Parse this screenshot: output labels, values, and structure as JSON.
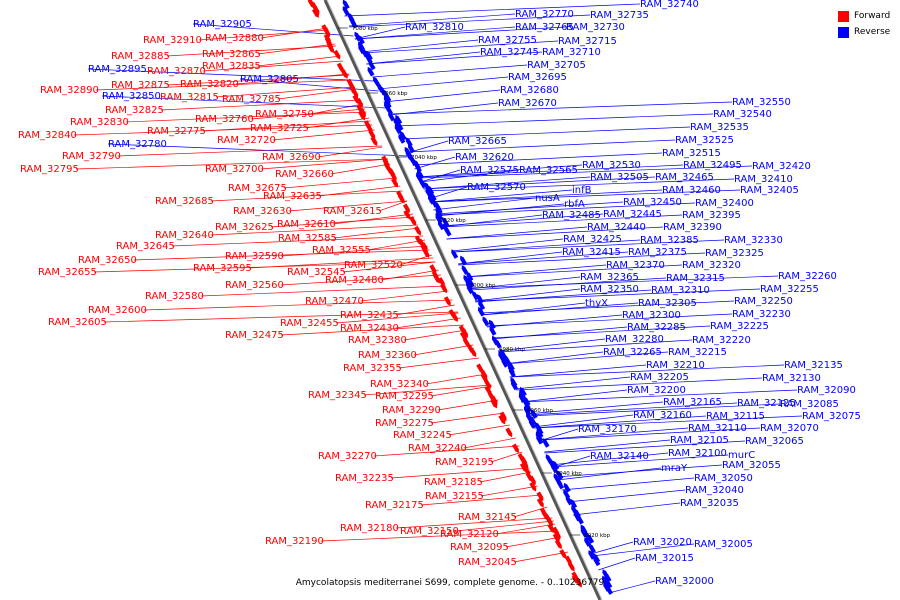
{
  "legend": [
    {
      "label": "Forward",
      "color": "#ff0000"
    },
    {
      "label": "Reverse",
      "color": "#0000ff"
    }
  ],
  "caption": "Amycolatopsis mediterranei S699, complete genome. - 0..10236779",
  "ticks": [
    "7080 kbp",
    "7060 kbp",
    "7040 kbp",
    "7020 kbp",
    "7000 kbp",
    "6980 kbp",
    "6960 kbp",
    "6940 kbp",
    "6920 kbp"
  ],
  "colors": {
    "forward": "#ff0000",
    "reverse": "#0000ff",
    "axis": "#555555"
  },
  "forward_genes": [
    "RAM_32880",
    "RAM_32910",
    "RAM_32865",
    "RAM_32885",
    "RAM_32835",
    "RAM_32870",
    "RAM_32820",
    "RAM_32875",
    "RAM_32890",
    "RAM_32815",
    "RAM_32785",
    "RAM_32825",
    "RAM_32760",
    "RAM_32750",
    "RAM_32830",
    "RAM_32775",
    "RAM_32725",
    "RAM_32840",
    "RAM_32720",
    "RAM_32790",
    "RAM_32690",
    "RAM_32795",
    "RAM_32700",
    "RAM_32660",
    "RAM_32675",
    "RAM_32635",
    "RAM_32685",
    "RAM_32630",
    "RAM_32615",
    "RAM_32625",
    "RAM_32610",
    "RAM_32640",
    "RAM_32585",
    "RAM_32645",
    "RAM_32555",
    "RAM_32650",
    "RAM_32590",
    "RAM_32595",
    "RAM_32545",
    "RAM_32655",
    "RAM_32520",
    "RAM_32560",
    "RAM_32480",
    "RAM_32580",
    "RAM_32470",
    "RAM_32600",
    "RAM_32435",
    "RAM_32605",
    "RAM_32455",
    "RAM_32430",
    "RAM_32475",
    "RAM_32380",
    "RAM_32360",
    "RAM_32355",
    "RAM_32340",
    "RAM_32345",
    "RAM_32295",
    "RAM_32290",
    "RAM_32275",
    "RAM_32245",
    "RAM_32240",
    "RAM_32270",
    "RAM_32195",
    "RAM_32235",
    "RAM_32185",
    "RAM_32155",
    "RAM_32175",
    "RAM_32145",
    "RAM_32180",
    "RAM_32150",
    "RAM_32120",
    "RAM_32190",
    "RAM_32095",
    "RAM_32045"
  ],
  "reverse_genes": [
    "RAM_32740",
    "RAM_32770",
    "RAM_32735",
    "RAM_32905",
    "RAM_32810",
    "RAM_32765",
    "RAM_32730",
    "RAM_32755",
    "RAM_32715",
    "RAM_32745",
    "RAM_32710",
    "RAM_32895",
    "RAM_32705",
    "RAM_32695",
    "RAM_32805",
    "RAM_32850",
    "RAM_32680",
    "RAM_32670",
    "RAM_32780",
    "RAM_32665",
    "RAM_32550",
    "RAM_32540",
    "RAM_32535",
    "RAM_32525",
    "RAM_32620",
    "RAM_32515",
    "RAM_32495",
    "RAM_32530",
    "RAM_32420",
    "RAM_32575",
    "RAM_32565",
    "RAM_32505",
    "RAM_32465",
    "RAM_32410",
    "RAM_32570",
    "infB",
    "RAM_32460",
    "RAM_32405",
    "nusA",
    "rbfA",
    "RAM_32450",
    "RAM_32400",
    "RAM_32485",
    "RAM_32445",
    "RAM_32395",
    "RAM_32440",
    "RAM_32390",
    "RAM_32425",
    "RAM_32385",
    "RAM_32330",
    "RAM_32415",
    "RAM_32375",
    "RAM_32325",
    "RAM_32370",
    "RAM_32320",
    "RAM_32365",
    "RAM_32315",
    "RAM_32260",
    "RAM_32350",
    "RAM_32310",
    "RAM_32255",
    "thyX",
    "RAM_32305",
    "RAM_32250",
    "RAM_32300",
    "RAM_32230",
    "RAM_32285",
    "RAM_32225",
    "RAM_32280",
    "RAM_32220",
    "RAM_32265",
    "RAM_32215",
    "RAM_32135",
    "RAM_32210",
    "RAM_32130",
    "RAM_32205",
    "RAM_32090",
    "RAM_32200",
    "RAM_32085",
    "RAM_32165",
    "RAM_32125",
    "RAM_32075",
    "RAM_32160",
    "RAM_32115",
    "RAM_32170",
    "RAM_32110",
    "RAM_32070",
    "RAM_32105",
    "RAM_32065",
    "RAM_32140",
    "RAM_32100",
    "murC",
    "mraY",
    "RAM_32055",
    "RAM_32050",
    "RAM_32040",
    "RAM_32035",
    "RAM_32020",
    "RAM_32005",
    "RAM_32015",
    "RAM_32000"
  ]
}
